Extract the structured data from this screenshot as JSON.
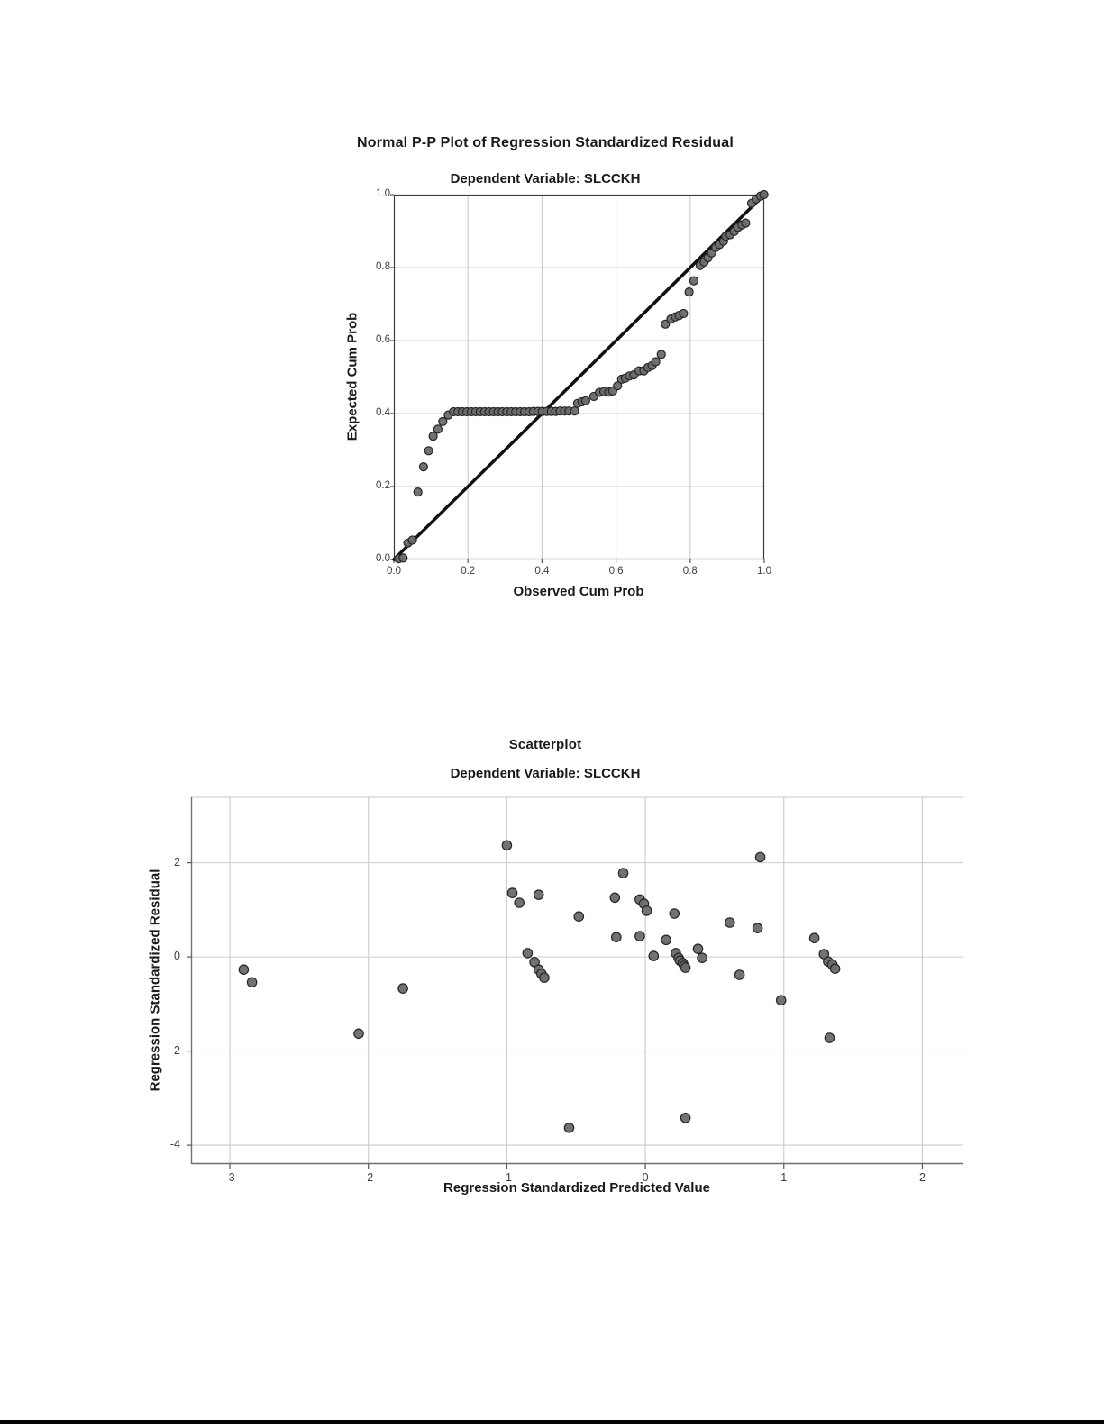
{
  "styles": {
    "point_fill": "#6a6a6a",
    "point_stroke": "#262626",
    "grid_color": "#cbcbcb",
    "reference_line_color": "#111111",
    "pp_border_color": "#3c3c3c",
    "scatter_axis_color": "#6f6f6f",
    "scatter_top_border_color": "#c9c9c9",
    "divider_color": "#050505",
    "background": "#ffffff"
  },
  "divider": {
    "visible": true
  },
  "chart_data": [
    {
      "type": "scatter",
      "title": "Normal P-P Plot of Regression Standardized Residual",
      "subtitle": "Dependent Variable: SLCCKH",
      "xlabel": "Observed Cum Prob",
      "ylabel": "Expected Cum Prob",
      "xlim": [
        0,
        1
      ],
      "ylim": [
        0,
        1
      ],
      "grid": true,
      "legend": "none",
      "xticks": [
        {
          "v": 0.0,
          "label": "0.0"
        },
        {
          "v": 0.2,
          "label": "0.2"
        },
        {
          "v": 0.4,
          "label": "0.4"
        },
        {
          "v": 0.6,
          "label": "0.6"
        },
        {
          "v": 0.8,
          "label": "0.8"
        },
        {
          "v": 1.0,
          "label": "1.0"
        }
      ],
      "yticks": [
        {
          "v": 0.0,
          "label": "0.0"
        },
        {
          "v": 0.2,
          "label": "0.2"
        },
        {
          "v": 0.4,
          "label": "0.4"
        },
        {
          "v": 0.6,
          "label": "0.6"
        },
        {
          "v": 0.8,
          "label": "0.8"
        },
        {
          "v": 1.0,
          "label": "1.0"
        }
      ],
      "reference_line": {
        "from": [
          0,
          0
        ],
        "to": [
          1,
          1
        ]
      },
      "points": [
        [
          0.013,
          0.002
        ],
        [
          0.025,
          0.004
        ],
        [
          0.038,
          0.045
        ],
        [
          0.05,
          0.053
        ],
        [
          0.065,
          0.185
        ],
        [
          0.08,
          0.254
        ],
        [
          0.094,
          0.298
        ],
        [
          0.106,
          0.338
        ],
        [
          0.119,
          0.357
        ],
        [
          0.132,
          0.378
        ],
        [
          0.147,
          0.396
        ],
        [
          0.161,
          0.405
        ],
        [
          0.173,
          0.405
        ],
        [
          0.185,
          0.405
        ],
        [
          0.197,
          0.405
        ],
        [
          0.209,
          0.405
        ],
        [
          0.221,
          0.405
        ],
        [
          0.233,
          0.405
        ],
        [
          0.245,
          0.405
        ],
        [
          0.257,
          0.405
        ],
        [
          0.269,
          0.405
        ],
        [
          0.281,
          0.405
        ],
        [
          0.293,
          0.405
        ],
        [
          0.305,
          0.405
        ],
        [
          0.317,
          0.405
        ],
        [
          0.329,
          0.405
        ],
        [
          0.341,
          0.405
        ],
        [
          0.353,
          0.405
        ],
        [
          0.365,
          0.405
        ],
        [
          0.377,
          0.406
        ],
        [
          0.389,
          0.406
        ],
        [
          0.401,
          0.406
        ],
        [
          0.413,
          0.406
        ],
        [
          0.425,
          0.406
        ],
        [
          0.437,
          0.406
        ],
        [
          0.449,
          0.407
        ],
        [
          0.461,
          0.407
        ],
        [
          0.473,
          0.407
        ],
        [
          0.488,
          0.407
        ],
        [
          0.496,
          0.428
        ],
        [
          0.508,
          0.432
        ],
        [
          0.518,
          0.435
        ],
        [
          0.54,
          0.447
        ],
        [
          0.555,
          0.458
        ],
        [
          0.567,
          0.46
        ],
        [
          0.58,
          0.459
        ],
        [
          0.591,
          0.462
        ],
        [
          0.604,
          0.476
        ],
        [
          0.615,
          0.494
        ],
        [
          0.625,
          0.497
        ],
        [
          0.636,
          0.503
        ],
        [
          0.648,
          0.506
        ],
        [
          0.662,
          0.517
        ],
        [
          0.675,
          0.517
        ],
        [
          0.686,
          0.526
        ],
        [
          0.697,
          0.531
        ],
        [
          0.707,
          0.542
        ],
        [
          0.722,
          0.562
        ],
        [
          0.733,
          0.645
        ],
        [
          0.748,
          0.659
        ],
        [
          0.76,
          0.665
        ],
        [
          0.77,
          0.669
        ],
        [
          0.782,
          0.674
        ],
        [
          0.797,
          0.733
        ],
        [
          0.81,
          0.764
        ],
        [
          0.827,
          0.806
        ],
        [
          0.838,
          0.815
        ],
        [
          0.848,
          0.827
        ],
        [
          0.858,
          0.84
        ],
        [
          0.869,
          0.855
        ],
        [
          0.879,
          0.863
        ],
        [
          0.89,
          0.872
        ],
        [
          0.896,
          0.886
        ],
        [
          0.908,
          0.89
        ],
        [
          0.919,
          0.899
        ],
        [
          0.929,
          0.91
        ],
        [
          0.94,
          0.917
        ],
        [
          0.95,
          0.922
        ],
        [
          0.966,
          0.976
        ],
        [
          0.978,
          0.988
        ],
        [
          0.99,
          0.996
        ],
        [
          0.999,
          1.0
        ]
      ]
    },
    {
      "type": "scatter",
      "title": "Scatterplot",
      "subtitle": "Dependent Variable: SLCCKH",
      "xlabel": "Regression Standardized Predicted Value",
      "ylabel": "Regression Standardized Residual",
      "xlim": [
        -3.28,
        2.29
      ],
      "ylim": [
        -4.4,
        3.39
      ],
      "grid": true,
      "legend": "none",
      "xticks": [
        {
          "v": -3,
          "label": "-3"
        },
        {
          "v": -2,
          "label": "-2"
        },
        {
          "v": -1,
          "label": "-1"
        },
        {
          "v": 0,
          "label": "0"
        },
        {
          "v": 1,
          "label": "1"
        },
        {
          "v": 2,
          "label": "2"
        }
      ],
      "yticks": [
        {
          "v": 2,
          "label": "2"
        },
        {
          "v": 0,
          "label": "0"
        },
        {
          "v": -2,
          "label": "-2"
        },
        {
          "v": -4,
          "label": "-4"
        }
      ],
      "reference_line": null,
      "points": [
        [
          -2.9,
          -0.27
        ],
        [
          -2.84,
          -0.54
        ],
        [
          -2.07,
          -1.63
        ],
        [
          -1.75,
          -0.67
        ],
        [
          -1.0,
          2.37
        ],
        [
          -0.96,
          1.36
        ],
        [
          -0.91,
          1.15
        ],
        [
          -0.77,
          1.32
        ],
        [
          -0.85,
          0.08
        ],
        [
          -0.8,
          -0.11
        ],
        [
          -0.77,
          -0.27
        ],
        [
          -0.75,
          -0.36
        ],
        [
          -0.73,
          -0.44
        ],
        [
          -0.55,
          -3.63
        ],
        [
          -0.48,
          0.86
        ],
        [
          -0.22,
          1.26
        ],
        [
          -0.16,
          1.78
        ],
        [
          -0.21,
          0.42
        ],
        [
          -0.04,
          1.22
        ],
        [
          -0.01,
          1.13
        ],
        [
          0.01,
          0.98
        ],
        [
          -0.04,
          0.44
        ],
        [
          0.06,
          0.02
        ],
        [
          0.15,
          0.36
        ],
        [
          0.21,
          0.92
        ],
        [
          0.22,
          0.08
        ],
        [
          0.24,
          -0.02
        ],
        [
          0.25,
          -0.08
        ],
        [
          0.27,
          -0.13
        ],
        [
          0.28,
          -0.19
        ],
        [
          0.29,
          -0.23
        ],
        [
          0.29,
          -3.42
        ],
        [
          0.38,
          0.17
        ],
        [
          0.41,
          -0.02
        ],
        [
          0.61,
          0.73
        ],
        [
          0.68,
          -0.38
        ],
        [
          0.81,
          0.61
        ],
        [
          0.83,
          2.12
        ],
        [
          0.98,
          -0.92
        ],
        [
          1.22,
          0.4
        ],
        [
          1.29,
          0.06
        ],
        [
          1.32,
          -0.1
        ],
        [
          1.35,
          -0.16
        ],
        [
          1.37,
          -0.25
        ],
        [
          1.33,
          -1.72
        ]
      ]
    }
  ]
}
